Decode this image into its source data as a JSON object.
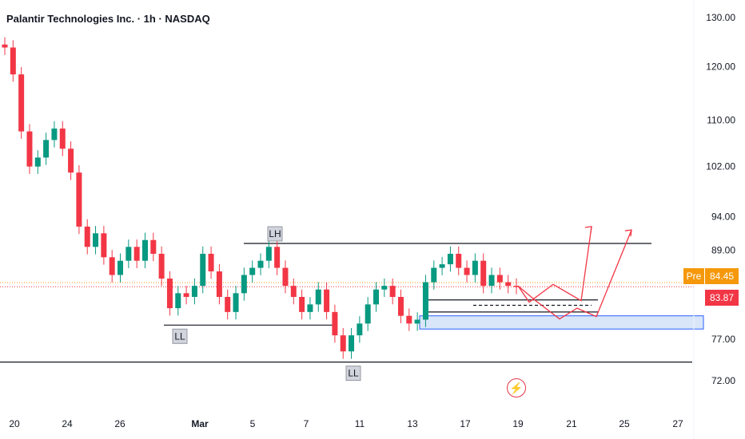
{
  "header": {
    "title": "Palantir Technologies Inc. · 1h · NASDAQ"
  },
  "price_tags": {
    "pre_label": "Pre",
    "pre_price": "84.45",
    "last_price": "83.87"
  },
  "icons": {
    "flash": "lightning-icon"
  },
  "colors": {
    "up": "#089981",
    "down": "#f23645",
    "zone_fill": "#cfe0f7",
    "zone_border": "#2962ff",
    "projection": "#f23645",
    "pre_tag": "#f5980b"
  },
  "chart_data": {
    "type": "candlestick",
    "title": "Palantir Technologies Inc. · 1h · NASDAQ",
    "ylim": [
      70.5,
      131.0
    ],
    "y_scale": "log",
    "y_ticks": [
      "130.00",
      "120.00",
      "110.00",
      "102.00",
      "94.00",
      "89.00",
      "77.00",
      "72.00"
    ],
    "x_ticks": [
      "20",
      "24",
      "26",
      "Mar",
      "5",
      "7",
      "11",
      "13",
      "17",
      "19",
      "21",
      "25",
      "27"
    ],
    "trend_points": [
      [
        "Feb 20",
        123.8
      ],
      [
        "Feb 20",
        118.5
      ],
      [
        "Feb 20",
        108.0
      ],
      [
        "Feb 21",
        102.0
      ],
      [
        "Feb 21",
        103.5
      ],
      [
        "Feb 21",
        106.5
      ],
      [
        "Feb 21",
        108.5
      ],
      [
        "Feb 24",
        105.0
      ],
      [
        "Feb 24",
        101.0
      ],
      [
        "Feb 24",
        92.5
      ],
      [
        "Feb 24",
        89.5
      ],
      [
        "Feb 25",
        91.5
      ],
      [
        "Feb 25",
        88.0
      ],
      [
        "Feb 25",
        85.5
      ],
      [
        "Feb 26",
        87.5
      ],
      [
        "Feb 26",
        89.5
      ],
      [
        "Feb 26",
        87.5
      ],
      [
        "Feb 27",
        90.5
      ],
      [
        "Feb 27",
        88.5
      ],
      [
        "Feb 27",
        85.0
      ],
      [
        "Feb 28",
        81.0
      ],
      [
        "Feb 28",
        83.0
      ],
      [
        "Feb 28",
        82.5
      ],
      [
        "Mar 3",
        84.0
      ],
      [
        "Mar 3",
        88.5
      ],
      [
        "Mar 3",
        86.0
      ],
      [
        "Mar 3",
        82.5
      ],
      [
        "Mar 4",
        80.5
      ],
      [
        "Mar 4",
        83.0
      ],
      [
        "Mar 4",
        85.5
      ],
      [
        "Mar 5",
        86.5
      ],
      [
        "Mar 5",
        87.5
      ],
      [
        "Mar 5",
        89.5
      ],
      [
        "Mar 6",
        86.5
      ],
      [
        "Mar 6",
        84.0
      ],
      [
        "Mar 6",
        82.5
      ],
      [
        "Mar 7",
        80.5
      ],
      [
        "Mar 7",
        81.5
      ],
      [
        "Mar 7",
        83.5
      ],
      [
        "Mar 10",
        80.5
      ],
      [
        "Mar 10",
        77.5
      ],
      [
        "Mar 10",
        75.5
      ],
      [
        "Mar 11",
        77.5
      ],
      [
        "Mar 11",
        79.0
      ],
      [
        "Mar 12",
        81.5
      ],
      [
        "Mar 12",
        83.5
      ],
      [
        "Mar 12",
        84.0
      ],
      [
        "Mar 13",
        82.5
      ],
      [
        "Mar 13",
        80.0
      ],
      [
        "Mar 13",
        79.0
      ],
      [
        "Mar 14",
        79.5
      ],
      [
        "Mar 14",
        84.5
      ],
      [
        "Mar 14",
        86.5
      ],
      [
        "Mar 17",
        87.0
      ],
      [
        "Mar 17",
        88.5
      ],
      [
        "Mar 17",
        86.5
      ],
      [
        "Mar 18",
        85.5
      ],
      [
        "Mar 18",
        87.5
      ],
      [
        "Mar 18",
        84.0
      ],
      [
        "Mar 18",
        85.5
      ],
      [
        "Mar 19",
        84.5
      ],
      [
        "Mar 19",
        84.0
      ],
      [
        "Mar 19",
        83.87
      ]
    ],
    "annotations": [
      {
        "label": "LH",
        "price": 90.0
      },
      {
        "label": "LL",
        "price": 78.8
      },
      {
        "label": "LL",
        "price": 74.2
      }
    ],
    "horizontal_levels": [
      90.0,
      82.1,
      81.7,
      80.5,
      78.8,
      74.2
    ],
    "support_zone": [
      78.3,
      80.0
    ],
    "projection_paths": [
      [
        84.0,
        81.8,
        84.2,
        82.0,
        92.5
      ],
      [
        84.0,
        82.0,
        79.6,
        81.0,
        79.9,
        92.0
      ]
    ],
    "current_price": 83.87,
    "premarket_price": 84.45
  }
}
